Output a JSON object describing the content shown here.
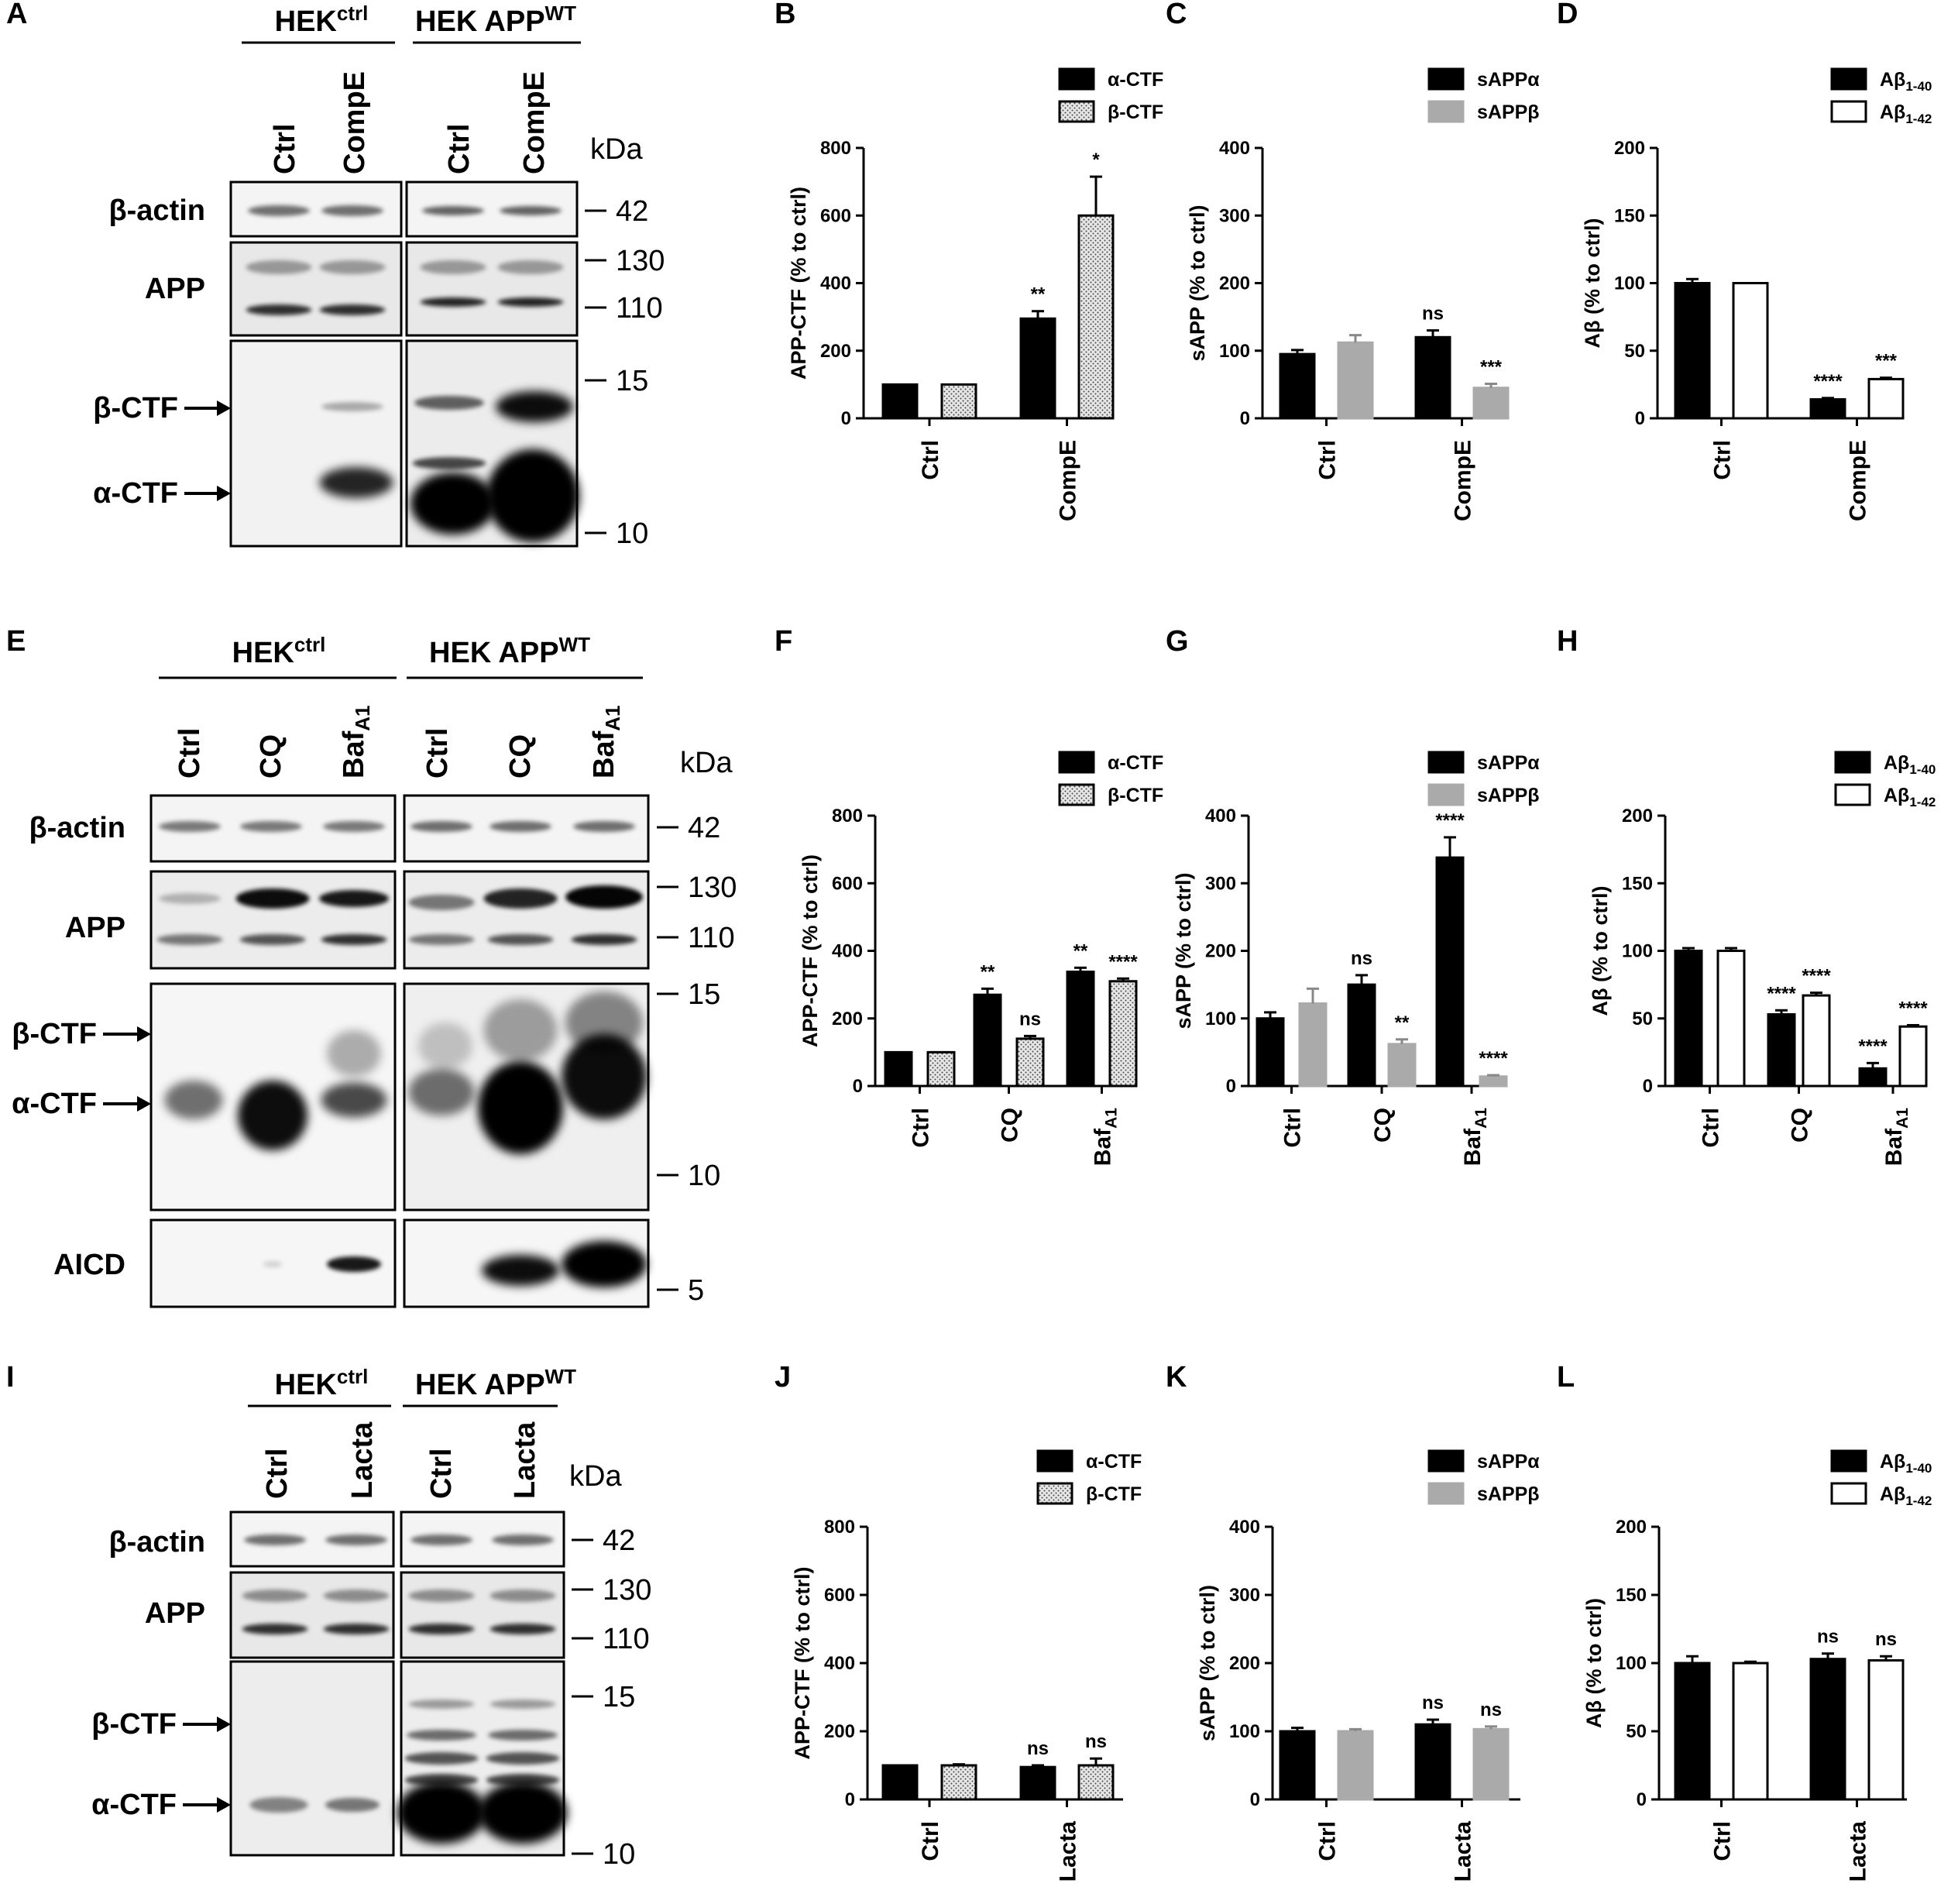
{
  "panel_letters": [
    "A",
    "B",
    "C",
    "D",
    "E",
    "F",
    "G",
    "H",
    "I",
    "J",
    "K",
    "L"
  ],
  "legend_text": {
    "a_ctf": "α-CTF",
    "b_ctf": "β-CTF",
    "sappa": "sAPPα",
    "sappb": "sAPPβ",
    "ab": "Aβ",
    "sub40": "1-40",
    "sub42": "1-42"
  },
  "colors": {
    "a_ctf": "#000000",
    "b_ctf_fill": "#d9d9d9",
    "sappa": "#000000",
    "sappb": "#aaaaaa",
    "ab40": "#000000",
    "ab42": "#ffffff"
  },
  "blots": {
    "A": {
      "groups": [
        {
          "main": "HEK",
          "sup": "ctrl"
        },
        {
          "main": "HEK APP",
          "sup": "WT"
        }
      ],
      "lanes": [
        "Ctrl",
        "CompE",
        "Ctrl",
        "CompE"
      ],
      "rows": [
        "β-actin",
        "APP",
        "β-CTF",
        "α-CTF"
      ],
      "kda": "kDa",
      "markers": [
        "42",
        "130",
        "110",
        "15",
        "10"
      ]
    },
    "E": {
      "groups": [
        {
          "main": "HEK",
          "sup": "ctrl"
        },
        {
          "main": "HEK APP",
          "sup": "WT"
        }
      ],
      "lanes": [
        "Ctrl",
        "CQ",
        "Baf",
        "Ctrl",
        "CQ",
        "Baf"
      ],
      "lane_sub": "A1",
      "rows": [
        "β-actin",
        "APP",
        "β-CTF",
        "α-CTF",
        "AICD"
      ],
      "kda": "kDa",
      "markers": [
        "42",
        "130",
        "110",
        "15",
        "10",
        "5"
      ]
    },
    "I": {
      "groups": [
        {
          "main": "HEK",
          "sup": "ctrl"
        },
        {
          "main": "HEK APP",
          "sup": "WT"
        }
      ],
      "lanes": [
        "Ctrl",
        "Lacta",
        "Ctrl",
        "Lacta"
      ],
      "rows": [
        "β-actin",
        "APP",
        "β-CTF",
        "α-CTF"
      ],
      "kda": "kDa",
      "markers": [
        "42",
        "130",
        "110",
        "15",
        "10"
      ]
    }
  },
  "chart_data": [
    {
      "panel": "B",
      "type": "bar",
      "ylabel": "APP-CTF (% to ctrl)",
      "ylim": [
        0,
        800
      ],
      "yticks": [
        0,
        200,
        400,
        600,
        800
      ],
      "categories": [
        "Ctrl",
        "CompE"
      ],
      "series": [
        {
          "name": "α-CTF",
          "values": [
            100,
            295
          ],
          "errors": [
            0,
            22
          ],
          "sig": [
            "",
            "**"
          ]
        },
        {
          "name": "β-CTF",
          "values": [
            100,
            600
          ],
          "errors": [
            0,
            115
          ],
          "sig": [
            "",
            "*"
          ]
        }
      ]
    },
    {
      "panel": "C",
      "type": "bar",
      "ylabel": "sAPP (% to ctrl)",
      "ylim": [
        0,
        400
      ],
      "yticks": [
        0,
        100,
        200,
        300,
        400
      ],
      "categories": [
        "Ctrl",
        "CompE"
      ],
      "series": [
        {
          "name": "sAPPα",
          "values": [
            95,
            120
          ],
          "errors": [
            6,
            10
          ],
          "sig": [
            "",
            "ns"
          ]
        },
        {
          "name": "sAPPβ",
          "values": [
            112,
            45
          ],
          "errors": [
            11,
            6
          ],
          "sig": [
            "",
            "***"
          ]
        }
      ]
    },
    {
      "panel": "D",
      "type": "bar",
      "ylabel": "Aβ (% to ctrl)",
      "ylim": [
        0,
        200
      ],
      "yticks": [
        0,
        50,
        100,
        150,
        200
      ],
      "categories": [
        "Ctrl",
        "CompE"
      ],
      "series": [
        {
          "name": "Aβ1-40",
          "values": [
            100,
            14
          ],
          "errors": [
            3,
            1
          ],
          "sig": [
            "",
            "****"
          ]
        },
        {
          "name": "Aβ1-42",
          "values": [
            100,
            29
          ],
          "errors": [
            0,
            1
          ],
          "sig": [
            "",
            "***"
          ]
        }
      ]
    },
    {
      "panel": "F",
      "type": "bar",
      "ylabel": "APP-CTF (% to ctrl)",
      "ylim": [
        0,
        800
      ],
      "yticks": [
        0,
        200,
        400,
        600,
        800
      ],
      "categories": [
        "Ctrl",
        "CQ",
        "BafA1"
      ],
      "series": [
        {
          "name": "α-CTF",
          "values": [
            100,
            270,
            338
          ],
          "errors": [
            0,
            18,
            12
          ],
          "sig": [
            "",
            "**",
            "**"
          ]
        },
        {
          "name": "β-CTF",
          "values": [
            100,
            140,
            310
          ],
          "errors": [
            0,
            8,
            8
          ],
          "sig": [
            "",
            "ns",
            "****"
          ]
        }
      ]
    },
    {
      "panel": "G",
      "type": "bar",
      "ylabel": "sAPP (% to ctrl)",
      "ylim": [
        0,
        400
      ],
      "yticks": [
        0,
        100,
        200,
        300,
        400
      ],
      "categories": [
        "Ctrl",
        "CQ",
        "BafA1"
      ],
      "series": [
        {
          "name": "sAPPα",
          "values": [
            100,
            150,
            338
          ],
          "errors": [
            9,
            14,
            30
          ],
          "sig": [
            "",
            "ns",
            "****"
          ]
        },
        {
          "name": "sAPPβ",
          "values": [
            122,
            62,
            14
          ],
          "errors": [
            22,
            7,
            2
          ],
          "sig": [
            "",
            "**",
            "****"
          ]
        }
      ]
    },
    {
      "panel": "H",
      "type": "bar",
      "ylabel": "Aβ (% to ctrl)",
      "ylim": [
        0,
        200
      ],
      "yticks": [
        0,
        50,
        100,
        150,
        200
      ],
      "categories": [
        "Ctrl",
        "CQ",
        "BafA1"
      ],
      "series": [
        {
          "name": "Aβ1-40",
          "values": [
            100,
            53,
            13
          ],
          "errors": [
            2,
            3,
            4
          ],
          "sig": [
            "",
            "****",
            "****"
          ]
        },
        {
          "name": "Aβ1-42",
          "values": [
            100,
            67,
            44
          ],
          "errors": [
            2,
            2,
            1
          ],
          "sig": [
            "",
            "****",
            "****"
          ]
        }
      ]
    },
    {
      "panel": "J",
      "type": "bar",
      "ylabel": "APP-CTF (% to ctrl)",
      "ylim": [
        0,
        800
      ],
      "yticks": [
        0,
        200,
        400,
        600,
        800
      ],
      "categories": [
        "Ctrl",
        "Lacta"
      ],
      "series": [
        {
          "name": "α-CTF",
          "values": [
            100,
            95
          ],
          "errors": [
            0,
            5
          ],
          "sig": [
            "",
            "ns"
          ]
        },
        {
          "name": "β-CTF",
          "values": [
            100,
            100
          ],
          "errors": [
            3,
            20
          ],
          "sig": [
            "",
            "ns"
          ]
        }
      ]
    },
    {
      "panel": "K",
      "type": "bar",
      "ylabel": "sAPP (% to ctrl)",
      "ylim": [
        0,
        400
      ],
      "yticks": [
        0,
        100,
        200,
        300,
        400
      ],
      "categories": [
        "Ctrl",
        "Lacta"
      ],
      "series": [
        {
          "name": "sAPPα",
          "values": [
            100,
            110
          ],
          "errors": [
            5,
            7
          ],
          "sig": [
            "",
            "ns"
          ]
        },
        {
          "name": "sAPPβ",
          "values": [
            100,
            103
          ],
          "errors": [
            3,
            4
          ],
          "sig": [
            "",
            "ns"
          ]
        }
      ]
    },
    {
      "panel": "L",
      "type": "bar",
      "ylabel": "Aβ (% to ctrl)",
      "ylim": [
        0,
        200
      ],
      "yticks": [
        0,
        50,
        100,
        150,
        200
      ],
      "categories": [
        "Ctrl",
        "Lacta"
      ],
      "series": [
        {
          "name": "Aβ1-40",
          "values": [
            100,
            103
          ],
          "errors": [
            5,
            4
          ],
          "sig": [
            "",
            "ns"
          ]
        },
        {
          "name": "Aβ1-42",
          "values": [
            100,
            102
          ],
          "errors": [
            1,
            3
          ],
          "sig": [
            "",
            "ns"
          ]
        }
      ]
    }
  ]
}
